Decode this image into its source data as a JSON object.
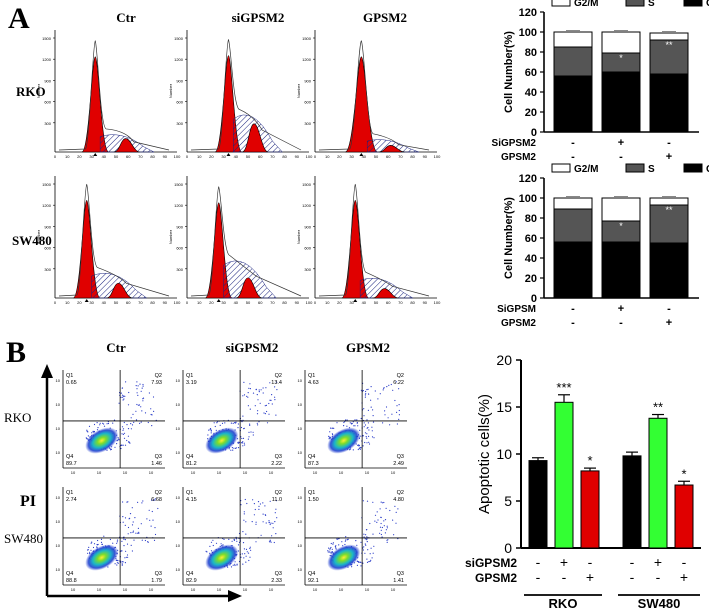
{
  "panelA": {
    "label": "A",
    "col_titles": [
      "Ctr",
      "siGPSM2",
      "GPSM2"
    ],
    "row_titles": [
      "RKO",
      "SW480"
    ],
    "hist_ytick": [
      "1500",
      "1200",
      "900",
      "600",
      "300"
    ],
    "hist_xtick": [
      "0",
      "10",
      "20",
      "30",
      "40",
      "50",
      "60",
      "70",
      "80",
      "90",
      "100"
    ],
    "hist_ylabel": "Number"
  },
  "panelB": {
    "label": "B",
    "col_titles": [
      "Ctr",
      "siGPSM2",
      "GPSM2"
    ],
    "row_titles": [
      "RKO",
      "SW480"
    ],
    "axis_label": "PI",
    "quad_names": [
      "Q1",
      "Q2",
      "Q3",
      "Q4"
    ],
    "quadrants": [
      [
        {
          "Q1": "0.65",
          "Q2": "7.93",
          "Q3": "1.46",
          "Q4": "89.7"
        },
        {
          "Q1": "3.19",
          "Q2": "13.4",
          "Q3": "2.22",
          "Q4": "81.2"
        },
        {
          "Q1": "4.63",
          "Q2": "6.22",
          "Q3": "2.49",
          "Q4": "87.3"
        }
      ],
      [
        {
          "Q1": "2.74",
          "Q2": "6.68",
          "Q3": "1.79",
          "Q4": "88.8"
        },
        {
          "Q1": "4.15",
          "Q2": "11.0",
          "Q3": "2.33",
          "Q4": "82.9"
        },
        {
          "Q1": "1.50",
          "Q2": "4.80",
          "Q3": "1.41",
          "Q4": "92.1"
        }
      ]
    ]
  },
  "colors": {
    "red": "#e00000",
    "black": "#000000",
    "green": "#33ff33",
    "dark_gray": "#555555",
    "light_gray": "#a6a6a6",
    "white": "#ffffff"
  },
  "chart_data": [
    {
      "type": "bar",
      "stacked": true,
      "panel": "A-RKO",
      "ylabel": "Cell Number(%)",
      "ylim": [
        0,
        120
      ],
      "yticks": [
        "0",
        "20",
        "40",
        "60",
        "80",
        "100",
        "120"
      ],
      "legend": [
        "G2/M",
        "S",
        "G0/G1"
      ],
      "legend_placement": "top",
      "condition_rows": [
        {
          "label": "SiGPSM2",
          "marks": [
            "-",
            "+",
            "-"
          ]
        },
        {
          "label": "GPSM2",
          "marks": [
            "-",
            "-",
            "+"
          ]
        }
      ],
      "series": [
        {
          "name": "G0/G1",
          "values": [
            56,
            60,
            58
          ]
        },
        {
          "name": "S",
          "values": [
            29,
            19,
            34
          ]
        },
        {
          "name": "G2/M",
          "values": [
            15,
            21,
            7
          ]
        }
      ],
      "annotations": [
        "",
        "*",
        "**"
      ]
    },
    {
      "type": "bar",
      "stacked": true,
      "panel": "A-SW480",
      "ylabel": "Cell Number(%)",
      "ylim": [
        0,
        120
      ],
      "yticks": [
        "0",
        "20",
        "40",
        "60",
        "80",
        "100",
        "120"
      ],
      "legend": [
        "G2/M",
        "S",
        "G0/G1"
      ],
      "legend_placement": "top",
      "condition_rows": [
        {
          "label": "SiGPSM",
          "marks": [
            "-",
            "+",
            "-"
          ]
        },
        {
          "label": "GPSM2",
          "marks": [
            "-",
            "-",
            "+"
          ]
        }
      ],
      "series": [
        {
          "name": "G0/G1",
          "values": [
            56,
            56,
            55
          ]
        },
        {
          "name": "S",
          "values": [
            33,
            21,
            38
          ]
        },
        {
          "name": "G2/M",
          "values": [
            11,
            23,
            7
          ]
        }
      ],
      "annotations": [
        "",
        "*",
        "**"
      ]
    },
    {
      "type": "bar",
      "panel": "B-apoptosis",
      "ylabel": "Apoptotic cells(%)",
      "ylim": [
        0,
        20
      ],
      "yticks": [
        "0",
        "5",
        "10",
        "15",
        "20"
      ],
      "groups": [
        "RKO",
        "SW480"
      ],
      "condition_rows": [
        {
          "label": "siGPSM2",
          "marks": [
            "-",
            "+",
            "-",
            "-",
            "+",
            "-"
          ]
        },
        {
          "label": "GPSM2",
          "marks": [
            "-",
            "-",
            "+",
            "-",
            "-",
            "+"
          ]
        }
      ],
      "values": [
        9.3,
        15.5,
        8.2,
        9.8,
        13.8,
        6.7
      ],
      "errors": [
        0.3,
        0.8,
        0.3,
        0.4,
        0.4,
        0.4
      ],
      "significance": [
        "",
        "***",
        "*",
        "",
        "**",
        "*"
      ]
    }
  ]
}
